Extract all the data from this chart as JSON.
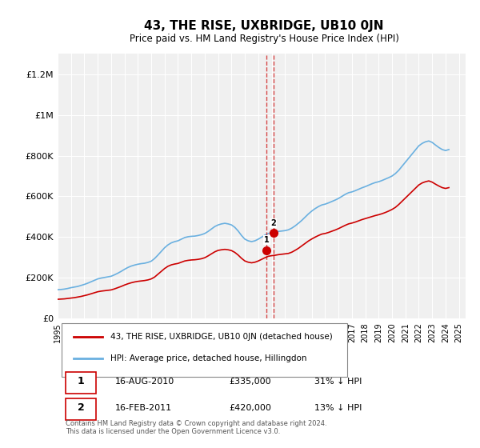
{
  "title": "43, THE RISE, UXBRIDGE, UB10 0JN",
  "subtitle": "Price paid vs. HM Land Registry's House Price Index (HPI)",
  "ylabel": "",
  "xlabel": "",
  "ylim": [
    0,
    1300000
  ],
  "yticks": [
    0,
    200000,
    400000,
    600000,
    800000,
    1000000,
    1200000
  ],
  "ytick_labels": [
    "£0",
    "£200K",
    "£400K",
    "£600K",
    "£800K",
    "£1M",
    "£1.2M"
  ],
  "background_color": "#ffffff",
  "plot_bg_color": "#f0f0f0",
  "grid_color": "#ffffff",
  "hpi_color": "#6ab0e0",
  "price_color": "#cc0000",
  "sale1_year": 2010.625,
  "sale1_price": 335000,
  "sale1_label": "1",
  "sale2_year": 2011.125,
  "sale2_price": 420000,
  "sale2_label": "2",
  "transactions": [
    {
      "num": "1",
      "date": "16-AUG-2010",
      "price": "£335,000",
      "hpi": "31% ↓ HPI"
    },
    {
      "num": "2",
      "date": "16-FEB-2011",
      "price": "£420,000",
      "hpi": "13% ↓ HPI"
    }
  ],
  "legend_line1": "43, THE RISE, UXBRIDGE, UB10 0JN (detached house)",
  "legend_line2": "HPI: Average price, detached house, Hillingdon",
  "footnote": "Contains HM Land Registry data © Crown copyright and database right 2024.\nThis data is licensed under the Open Government Licence v3.0.",
  "hpi_x": [
    1995,
    1995.25,
    1995.5,
    1995.75,
    1996,
    1996.25,
    1996.5,
    1996.75,
    1997,
    1997.25,
    1997.5,
    1997.75,
    1998,
    1998.25,
    1998.5,
    1998.75,
    1999,
    1999.25,
    1999.5,
    1999.75,
    2000,
    2000.25,
    2000.5,
    2000.75,
    2001,
    2001.25,
    2001.5,
    2001.75,
    2002,
    2002.25,
    2002.5,
    2002.75,
    2003,
    2003.25,
    2003.5,
    2003.75,
    2004,
    2004.25,
    2004.5,
    2004.75,
    2005,
    2005.25,
    2005.5,
    2005.75,
    2006,
    2006.25,
    2006.5,
    2006.75,
    2007,
    2007.25,
    2007.5,
    2007.75,
    2008,
    2008.25,
    2008.5,
    2008.75,
    2009,
    2009.25,
    2009.5,
    2009.75,
    2010,
    2010.25,
    2010.5,
    2010.75,
    2011,
    2011.25,
    2011.5,
    2011.75,
    2012,
    2012.25,
    2012.5,
    2012.75,
    2013,
    2013.25,
    2013.5,
    2013.75,
    2014,
    2014.25,
    2014.5,
    2014.75,
    2015,
    2015.25,
    2015.5,
    2015.75,
    2016,
    2016.25,
    2016.5,
    2016.75,
    2017,
    2017.25,
    2017.5,
    2017.75,
    2018,
    2018.25,
    2018.5,
    2018.75,
    2019,
    2019.25,
    2019.5,
    2019.75,
    2020,
    2020.25,
    2020.5,
    2020.75,
    2021,
    2021.25,
    2021.5,
    2021.75,
    2022,
    2022.25,
    2022.5,
    2022.75,
    2023,
    2023.25,
    2023.5,
    2023.75,
    2024,
    2024.25
  ],
  "hpi_y": [
    142000,
    143000,
    145000,
    148000,
    152000,
    155000,
    158000,
    163000,
    168000,
    174000,
    181000,
    188000,
    195000,
    199000,
    202000,
    205000,
    208000,
    215000,
    223000,
    232000,
    242000,
    251000,
    258000,
    263000,
    267000,
    270000,
    272000,
    276000,
    282000,
    295000,
    312000,
    330000,
    348000,
    362000,
    372000,
    378000,
    382000,
    390000,
    398000,
    402000,
    404000,
    405000,
    408000,
    412000,
    418000,
    428000,
    440000,
    452000,
    460000,
    465000,
    468000,
    465000,
    460000,
    448000,
    430000,
    408000,
    390000,
    382000,
    378000,
    382000,
    390000,
    400000,
    410000,
    418000,
    422000,
    425000,
    428000,
    430000,
    432000,
    436000,
    444000,
    455000,
    468000,
    482000,
    498000,
    514000,
    528000,
    540000,
    550000,
    558000,
    562000,
    568000,
    575000,
    582000,
    590000,
    600000,
    610000,
    618000,
    622000,
    628000,
    635000,
    642000,
    648000,
    655000,
    662000,
    668000,
    672000,
    678000,
    685000,
    692000,
    700000,
    712000,
    728000,
    748000,
    768000,
    788000,
    808000,
    828000,
    848000,
    860000,
    868000,
    872000,
    865000,
    852000,
    840000,
    830000,
    825000,
    830000
  ],
  "price_x": [
    1995,
    1995.25,
    1995.5,
    1995.75,
    1996,
    1996.25,
    1996.5,
    1996.75,
    1997,
    1997.25,
    1997.5,
    1997.75,
    1998,
    1998.25,
    1998.5,
    1998.75,
    1999,
    1999.25,
    1999.5,
    1999.75,
    2000,
    2000.25,
    2000.5,
    2000.75,
    2001,
    2001.25,
    2001.5,
    2001.75,
    2002,
    2002.25,
    2002.5,
    2002.75,
    2003,
    2003.25,
    2003.5,
    2003.75,
    2004,
    2004.25,
    2004.5,
    2004.75,
    2005,
    2005.25,
    2005.5,
    2005.75,
    2006,
    2006.25,
    2006.5,
    2006.75,
    2007,
    2007.25,
    2007.5,
    2007.75,
    2008,
    2008.25,
    2008.5,
    2008.75,
    2009,
    2009.25,
    2009.5,
    2009.75,
    2010,
    2010.25,
    2010.5,
    2010.75,
    2011,
    2011.25,
    2011.5,
    2011.75,
    2012,
    2012.25,
    2012.5,
    2012.75,
    2013,
    2013.25,
    2013.5,
    2013.75,
    2014,
    2014.25,
    2014.5,
    2014.75,
    2015,
    2015.25,
    2015.5,
    2015.75,
    2016,
    2016.25,
    2016.5,
    2016.75,
    2017,
    2017.25,
    2017.5,
    2017.75,
    2018,
    2018.25,
    2018.5,
    2018.75,
    2019,
    2019.25,
    2019.5,
    2019.75,
    2020,
    2020.25,
    2020.5,
    2020.75,
    2021,
    2021.25,
    2021.5,
    2021.75,
    2022,
    2022.25,
    2022.5,
    2022.75,
    2023,
    2023.25,
    2023.5,
    2023.75,
    2024,
    2024.25
  ],
  "price_y": [
    95000,
    96000,
    97000,
    99000,
    101000,
    103000,
    106000,
    109000,
    113000,
    117000,
    122000,
    127000,
    132000,
    135000,
    137000,
    139000,
    141000,
    146000,
    152000,
    158000,
    165000,
    171000,
    176000,
    180000,
    183000,
    185000,
    187000,
    190000,
    195000,
    204000,
    218000,
    232000,
    246000,
    257000,
    264000,
    268000,
    271000,
    277000,
    283000,
    286000,
    288000,
    289000,
    291000,
    294000,
    299000,
    308000,
    318000,
    328000,
    335000,
    338000,
    340000,
    338000,
    334000,
    325000,
    312000,
    296000,
    283000,
    277000,
    274000,
    277000,
    283000,
    291000,
    299000,
    306000,
    309000,
    311000,
    314000,
    316000,
    318000,
    320000,
    326000,
    335000,
    345000,
    357000,
    369000,
    381000,
    391000,
    400000,
    408000,
    415000,
    418000,
    423000,
    429000,
    435000,
    442000,
    450000,
    458000,
    465000,
    469000,
    474000,
    480000,
    486000,
    491000,
    496000,
    501000,
    506000,
    510000,
    515000,
    521000,
    528000,
    536000,
    546000,
    560000,
    576000,
    592000,
    608000,
    624000,
    640000,
    656000,
    666000,
    672000,
    676000,
    670000,
    660000,
    651000,
    643000,
    639000,
    643000
  ]
}
